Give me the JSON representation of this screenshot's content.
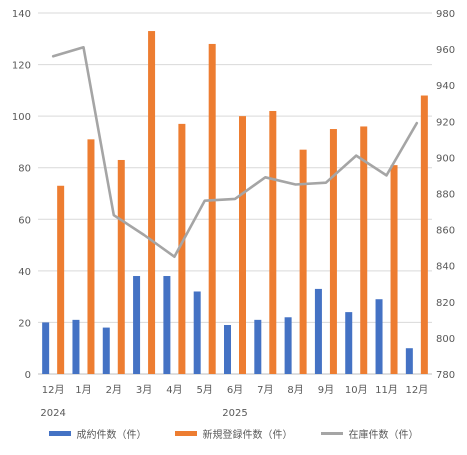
{
  "chart_data": {
    "type": "bar",
    "categories": [
      "12月",
      "1月",
      "2月",
      "3月",
      "4月",
      "5月",
      "6月",
      "7月",
      "8月",
      "9月",
      "10月",
      "11月",
      "12月"
    ],
    "year_labels": [
      {
        "label": "2024",
        "category_index": 0
      },
      {
        "label": "2025",
        "category_index": 6
      }
    ],
    "series": [
      {
        "name": "成約件数（件）",
        "type": "bar",
        "axis": "left",
        "color": "#4472C4",
        "values": [
          20,
          21,
          18,
          38,
          38,
          32,
          19,
          21,
          22,
          33,
          24,
          29,
          10
        ]
      },
      {
        "name": "新規登録件数（件）",
        "type": "bar",
        "axis": "left",
        "color": "#ED7D31",
        "values": [
          73,
          91,
          83,
          133,
          97,
          128,
          100,
          102,
          87,
          95,
          96,
          81,
          108
        ]
      },
      {
        "name": "在庫件数（件）",
        "type": "line",
        "axis": "right",
        "color": "#A5A5A5",
        "values": [
          956,
          961,
          868,
          857,
          845,
          876,
          877,
          889,
          885,
          886,
          901,
          890,
          919
        ]
      }
    ],
    "y_left": {
      "min": 0,
      "max": 140,
      "step": 20,
      "ticks": [
        "0",
        "20",
        "40",
        "60",
        "80",
        "100",
        "120",
        "140"
      ]
    },
    "y_right": {
      "min": 780,
      "max": 980,
      "step": 20,
      "ticks": [
        "780",
        "800",
        "820",
        "840",
        "860",
        "880",
        "900",
        "920",
        "940",
        "960",
        "980"
      ]
    },
    "grid": true,
    "legend_position": "bottom"
  }
}
